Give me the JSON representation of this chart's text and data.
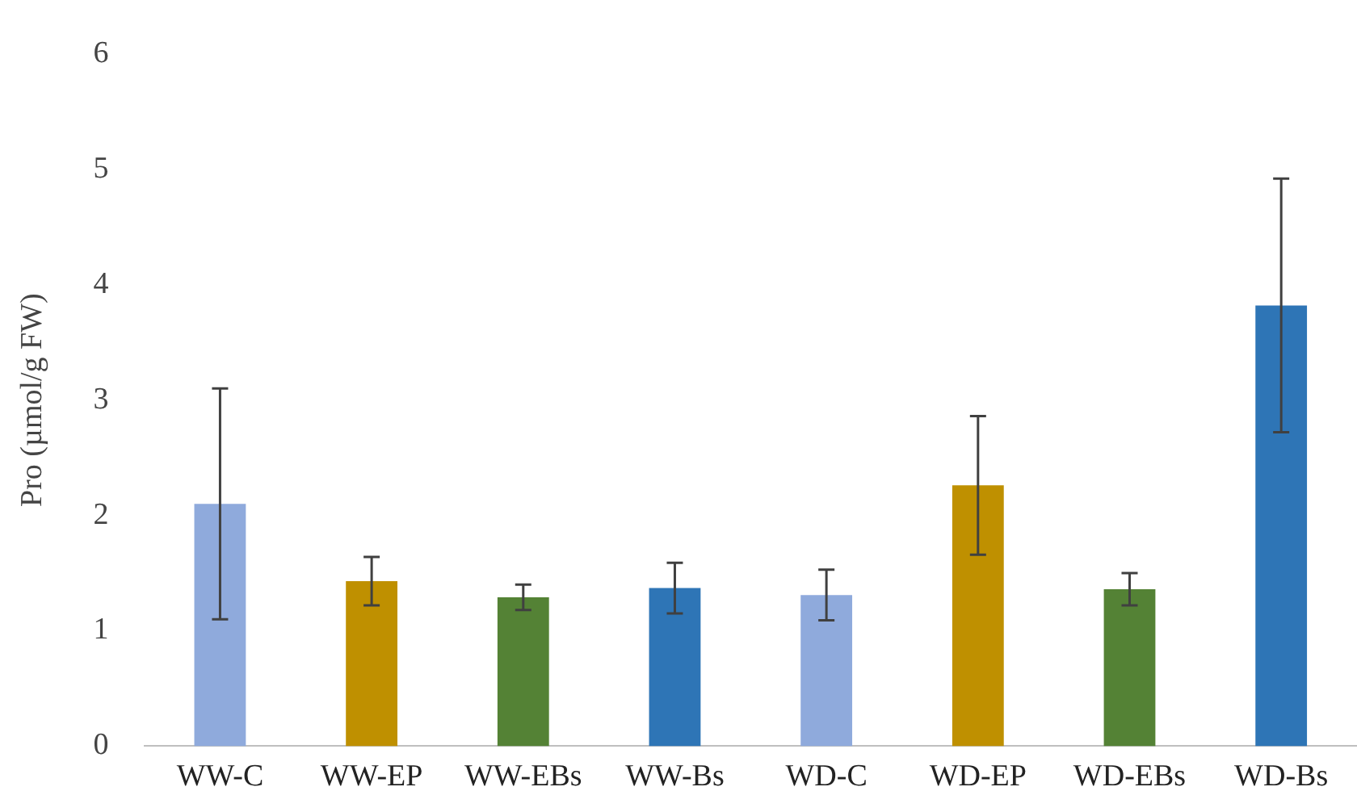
{
  "chart_data": {
    "type": "bar",
    "ylabel": "Pro (µmol/g FW)",
    "categories": [
      "WW-C",
      "WW-EP",
      "WW-EBs",
      "WW-Bs",
      "WD-C",
      "WD-EP",
      "WD-EBs",
      "WD-Bs"
    ],
    "values": [
      2.1,
      1.43,
      1.29,
      1.37,
      1.31,
      2.26,
      1.36,
      3.82
    ],
    "errors": [
      1.0,
      0.21,
      0.11,
      0.22,
      0.22,
      0.6,
      0.14,
      1.1
    ],
    "colors": [
      "#8faadc",
      "#bf9000",
      "#548235",
      "#2e75b6",
      "#8faadc",
      "#bf9000",
      "#548235",
      "#2e75b6"
    ],
    "ylim": [
      0,
      6
    ],
    "yticks": [
      0,
      1,
      2,
      3,
      4,
      5,
      6
    ],
    "grid": false,
    "legend": false
  }
}
